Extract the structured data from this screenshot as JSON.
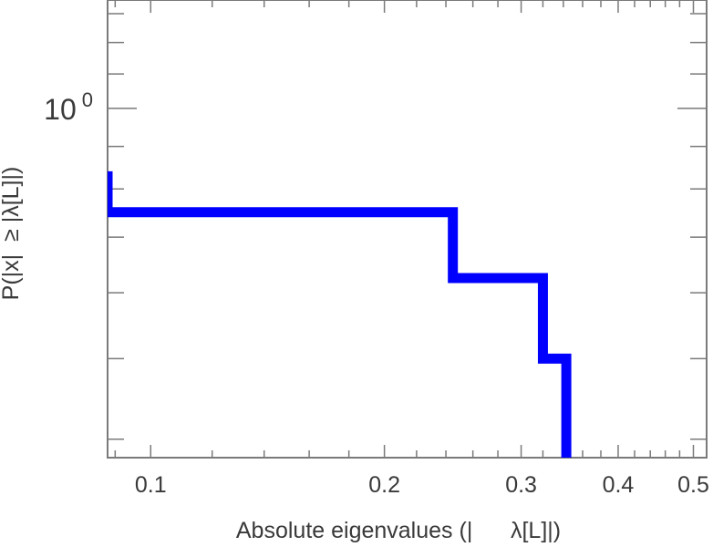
{
  "chart_data": {
    "type": "line",
    "step": true,
    "xlabel": "Absolute eigenvalues (|      λ[L]|)",
    "ylabel": "P(|x|  ≥ |λ[L]|)",
    "x_scale": "log",
    "y_scale": "log",
    "xlim": [
      0.088,
      0.52
    ],
    "ylim": [
      0.38,
      1.35
    ],
    "x_ticks": [
      {
        "value": 0.1,
        "label": "0.1"
      },
      {
        "value": 0.2,
        "label": "0.2"
      },
      {
        "value": 0.3,
        "label": "0.3"
      },
      {
        "value": 0.4,
        "label": "0.4"
      },
      {
        "value": 0.5,
        "label": "0.5"
      }
    ],
    "y_ticks": [
      {
        "value": 1,
        "base": "10",
        "exponent": "0"
      }
    ],
    "grid": false,
    "legend": "none",
    "series": [
      {
        "color": "#0000ff",
        "points": [
          {
            "x": 0.088,
            "y": 0.84
          },
          {
            "x": 0.088,
            "y": 0.75
          },
          {
            "x": 0.245,
            "y": 0.75
          },
          {
            "x": 0.245,
            "y": 0.625
          },
          {
            "x": 0.32,
            "y": 0.625
          },
          {
            "x": 0.32,
            "y": 0.5
          },
          {
            "x": 0.343,
            "y": 0.5
          },
          {
            "x": 0.343,
            "y": 0.38
          }
        ]
      }
    ]
  }
}
